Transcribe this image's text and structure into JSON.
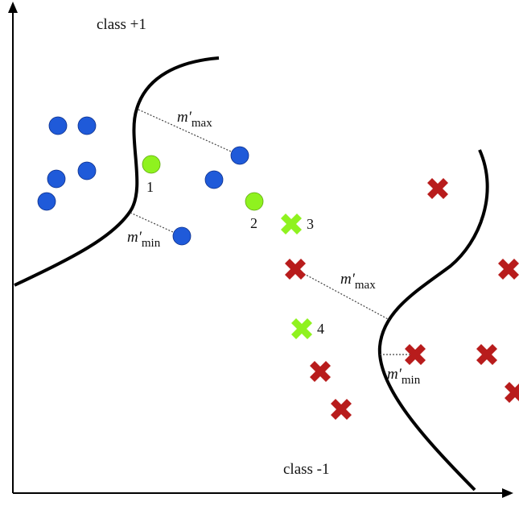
{
  "labels": {
    "class_pos": "class +1",
    "class_neg": "class -1",
    "m_max_top_main": "m′",
    "m_max_top_sub": "max",
    "m_min_top_main": "m′",
    "m_min_top_sub": "min",
    "m_max_bottom_main": "m′",
    "m_max_bottom_sub": "max",
    "m_min_bottom_main": "m′",
    "m_min_bottom_sub": "min",
    "point_1": "1",
    "point_2": "2",
    "point_3": "3",
    "point_4": "4"
  },
  "colors": {
    "positive": "#1f5ad9",
    "negative": "#b81c1c",
    "unlabeled": "#8ff21f",
    "boundary": "#000000",
    "margin_line": "#444444",
    "axis": "#000000"
  },
  "legend_semantics": {
    "positive_marker": "blue-circle",
    "negative_marker": "red-cross",
    "unlabeled_circle": "green-circle",
    "unlabeled_cross": "green-cross"
  }
}
